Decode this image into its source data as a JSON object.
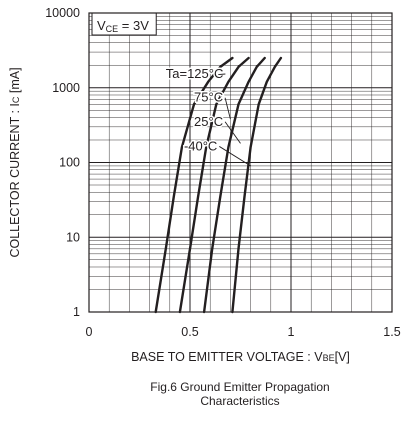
{
  "chart_data": {
    "type": "line",
    "xlabel": {
      "main": "BASE TO EMITTER VOLTAGE : V",
      "sub": "BE",
      "unit": "[V]"
    },
    "ylabel": {
      "main": "COLLECTOR CURRENT : I",
      "sub": "C",
      "unit": " [mA]"
    },
    "xlim": [
      0,
      1.5
    ],
    "ylim": [
      1,
      10000
    ],
    "yscale": "log",
    "grid": true,
    "x_ticks": [
      "0",
      "0.5",
      "1",
      "1.5"
    ],
    "y_ticks": [
      "1",
      "10",
      "100",
      "1000",
      "10000"
    ],
    "condition": {
      "main": "V",
      "sub": "CE",
      "rest": " = 3V"
    },
    "series": [
      {
        "name": "Ta=125°C",
        "label_x": 0.38,
        "label_y": 1350,
        "leader_to": [
          0.64,
          1500
        ],
        "x": [
          0.33,
          0.38,
          0.42,
          0.46,
          0.52,
          0.59,
          0.65,
          0.71
        ],
        "y": [
          1,
          7,
          35,
          160,
          600,
          1200,
          1900,
          2500
        ]
      },
      {
        "name": "75°C",
        "label_x": 0.52,
        "label_y": 650,
        "leader_to": [
          0.7,
          380
        ],
        "x": [
          0.45,
          0.5,
          0.54,
          0.58,
          0.63,
          0.69,
          0.74,
          0.79
        ],
        "y": [
          1,
          7,
          35,
          160,
          600,
          1200,
          1900,
          2500
        ]
      },
      {
        "name": "25°C",
        "label_x": 0.52,
        "label_y": 310,
        "leader_to": [
          0.75,
          180
        ],
        "x": [
          0.57,
          0.61,
          0.65,
          0.69,
          0.74,
          0.79,
          0.83,
          0.87
        ],
        "y": [
          1,
          7,
          35,
          160,
          600,
          1200,
          1900,
          2500
        ]
      },
      {
        "name": "-40°C",
        "label_x": 0.47,
        "label_y": 145,
        "leader_to": [
          0.8,
          90
        ],
        "x": [
          0.71,
          0.74,
          0.77,
          0.8,
          0.84,
          0.88,
          0.92,
          0.95
        ],
        "y": [
          1,
          7,
          35,
          160,
          600,
          1200,
          1900,
          2500
        ]
      }
    ],
    "caption": [
      "Fig.6 Ground Emitter Propagation",
      "Characteristics"
    ]
  }
}
